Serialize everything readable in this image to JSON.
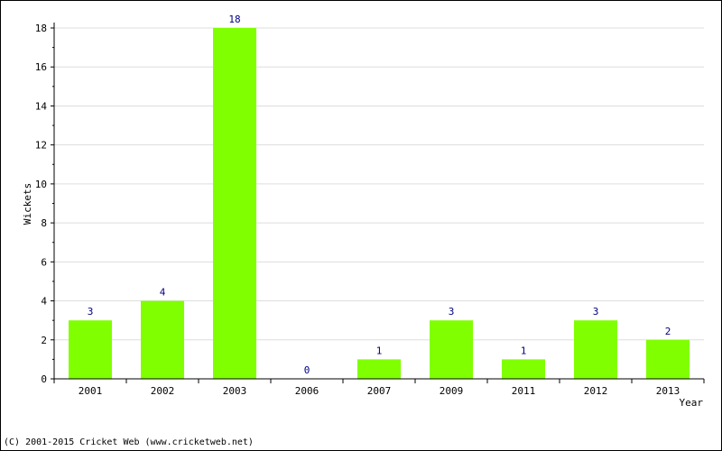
{
  "chart_data": {
    "type": "bar",
    "categories": [
      "2001",
      "2002",
      "2003",
      "2006",
      "2007",
      "2009",
      "2011",
      "2012",
      "2013"
    ],
    "values": [
      3,
      4,
      18,
      0,
      1,
      3,
      1,
      3,
      2
    ],
    "xlabel": "Year",
    "ylabel": "Wickets",
    "ylim": [
      0,
      18
    ],
    "yticks": [
      0,
      2,
      4,
      6,
      8,
      10,
      12,
      14,
      16,
      18
    ],
    "grid": true,
    "bar_color": "#80ff00"
  },
  "footer": {
    "copyright": "(C) 2001-2015 Cricket Web (www.cricketweb.net)"
  }
}
